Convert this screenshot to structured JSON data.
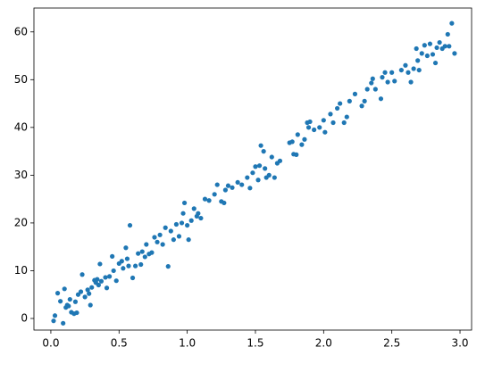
{
  "chart_data": {
    "type": "scatter",
    "color": "#1f77b4",
    "x": [
      0.02,
      0.03,
      0.05,
      0.07,
      0.09,
      0.1,
      0.11,
      0.12,
      0.13,
      0.14,
      0.15,
      0.17,
      0.18,
      0.19,
      0.2,
      0.22,
      0.23,
      0.25,
      0.27,
      0.28,
      0.29,
      0.3,
      0.32,
      0.33,
      0.34,
      0.35,
      0.36,
      0.37,
      0.4,
      0.41,
      0.43,
      0.45,
      0.46,
      0.48,
      0.5,
      0.52,
      0.53,
      0.55,
      0.56,
      0.57,
      0.58,
      0.6,
      0.62,
      0.64,
      0.66,
      0.67,
      0.69,
      0.7,
      0.72,
      0.74,
      0.76,
      0.78,
      0.8,
      0.82,
      0.84,
      0.86,
      0.88,
      0.9,
      0.92,
      0.94,
      0.96,
      0.97,
      0.98,
      1.0,
      1.01,
      1.03,
      1.05,
      1.07,
      1.08,
      1.1,
      1.13,
      1.16,
      1.2,
      1.22,
      1.25,
      1.27,
      1.28,
      1.3,
      1.33,
      1.37,
      1.4,
      1.44,
      1.46,
      1.48,
      1.5,
      1.52,
      1.53,
      1.54,
      1.56,
      1.57,
      1.58,
      1.6,
      1.62,
      1.64,
      1.66,
      1.68,
      1.75,
      1.77,
      1.78,
      1.8,
      1.81,
      1.84,
      1.86,
      1.88,
      1.89,
      1.9,
      1.93,
      1.97,
      2.0,
      2.01,
      2.05,
      2.07,
      2.1,
      2.12,
      2.15,
      2.17,
      2.19,
      2.23,
      2.28,
      2.3,
      2.32,
      2.35,
      2.36,
      2.38,
      2.42,
      2.43,
      2.45,
      2.47,
      2.5,
      2.52,
      2.57,
      2.6,
      2.62,
      2.64,
      2.66,
      2.68,
      2.69,
      2.7,
      2.72,
      2.74,
      2.76,
      2.78,
      2.8,
      2.82,
      2.83,
      2.85,
      2.87,
      2.89,
      2.91,
      2.92,
      2.94,
      2.96
    ],
    "y": [
      -0.5,
      0.6,
      5.3,
      3.6,
      -1.0,
      6.2,
      2.3,
      2.8,
      2.6,
      4.0,
      1.3,
      1.0,
      3.5,
      1.2,
      5.0,
      5.6,
      9.2,
      4.5,
      6.0,
      5.2,
      2.8,
      6.5,
      8.0,
      7.5,
      8.2,
      7.0,
      11.4,
      7.8,
      8.6,
      6.4,
      8.8,
      13.0,
      10.0,
      7.9,
      11.5,
      12.0,
      10.5,
      14.8,
      12.5,
      11.0,
      19.5,
      8.5,
      11.0,
      13.6,
      11.3,
      14.0,
      12.9,
      15.5,
      13.5,
      13.8,
      17.0,
      16.0,
      17.5,
      15.5,
      19.0,
      10.9,
      18.3,
      16.5,
      19.7,
      17.2,
      20.0,
      22.0,
      24.2,
      19.5,
      16.5,
      20.5,
      23.0,
      21.4,
      22.0,
      21.0,
      25.0,
      24.7,
      26.0,
      28.0,
      24.5,
      24.2,
      26.9,
      27.8,
      27.4,
      28.5,
      28.0,
      29.5,
      27.3,
      30.5,
      31.8,
      29.0,
      32.0,
      36.2,
      35.0,
      31.4,
      29.5,
      30.0,
      33.8,
      29.5,
      32.5,
      33.0,
      36.8,
      37.0,
      34.4,
      34.3,
      38.5,
      36.4,
      37.5,
      41.0,
      40.0,
      41.2,
      39.5,
      40.0,
      41.5,
      39.0,
      42.8,
      41.0,
      44.0,
      45.0,
      41.0,
      42.2,
      45.5,
      47.0,
      44.5,
      45.5,
      48.0,
      49.3,
      50.2,
      48.0,
      46.0,
      50.5,
      51.5,
      49.5,
      51.5,
      49.7,
      52.0,
      53.0,
      51.5,
      49.5,
      52.3,
      56.5,
      54.0,
      52.0,
      55.5,
      57.2,
      55.0,
      57.5,
      55.3,
      53.5,
      56.7,
      57.8,
      56.5,
      57.0,
      59.5,
      57.0,
      61.8,
      55.5
    ],
    "xlim": [
      -0.124,
      3.085
    ],
    "ylim": [
      -2.43,
      65.0
    ],
    "xticks": [
      {
        "value": 0,
        "label": "0.0"
      },
      0.5,
      {
        "value": 1,
        "label": "1.0"
      },
      1.5,
      {
        "value": 2,
        "label": "2.0"
      },
      2.5,
      {
        "value": 3,
        "label": "3.0"
      }
    ],
    "yticks": [
      0,
      10,
      20,
      30,
      40,
      50,
      60
    ]
  }
}
